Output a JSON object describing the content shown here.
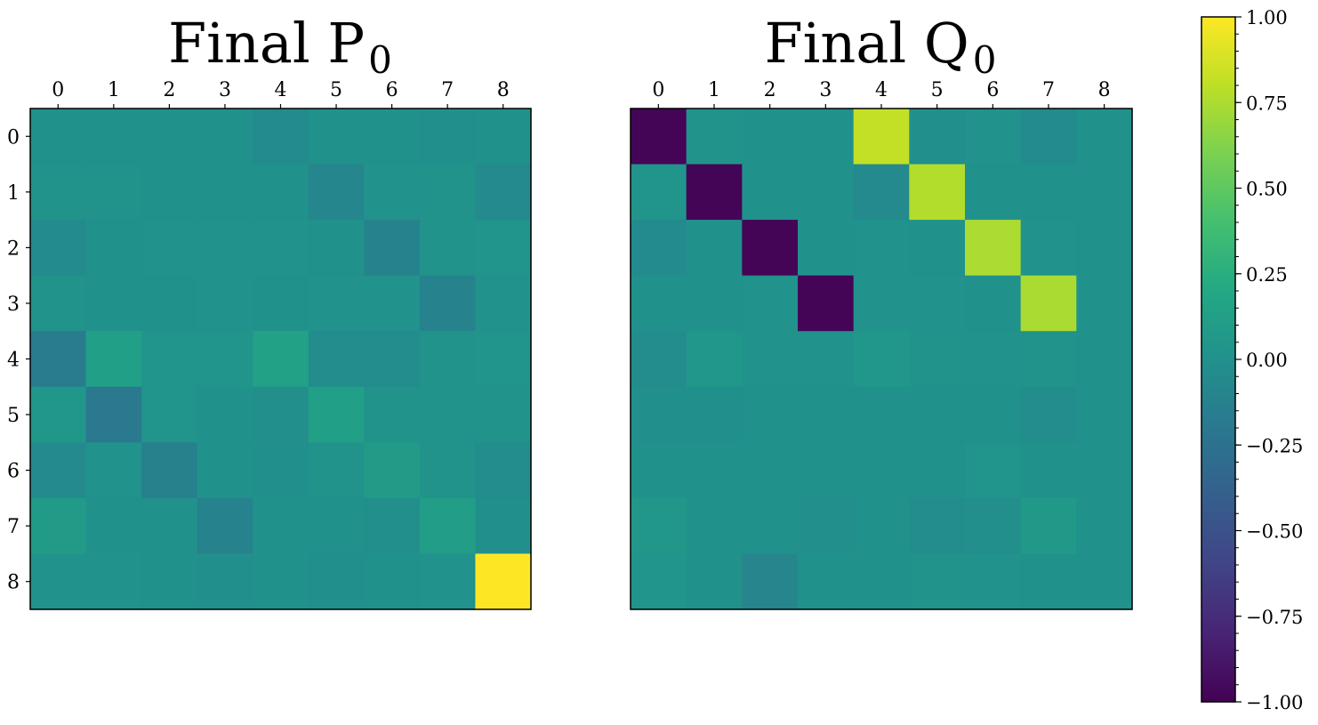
{
  "chart_data": [
    {
      "type": "heatmap",
      "title": "Final P",
      "title_subscript": "0",
      "x_tick_labels": [
        "0",
        "1",
        "2",
        "3",
        "4",
        "5",
        "6",
        "7",
        "8"
      ],
      "y_tick_labels": [
        "0",
        "1",
        "2",
        "3",
        "4",
        "5",
        "6",
        "7",
        "8"
      ],
      "x_ticks_position": "top",
      "colormap": "viridis",
      "vmin": -1.0,
      "vmax": 1.0,
      "values": [
        [
          0.0,
          0.0,
          0.0,
          0.0,
          -0.05,
          0.0,
          0.0,
          -0.01,
          0.0
        ],
        [
          0.02,
          0.02,
          0.0,
          0.0,
          0.0,
          -0.09,
          0.01,
          0.02,
          -0.06
        ],
        [
          -0.05,
          0.0,
          0.01,
          0.01,
          0.01,
          0.0,
          -0.11,
          0.02,
          0.03
        ],
        [
          0.02,
          0.0,
          0.0,
          0.01,
          0.0,
          0.01,
          0.01,
          -0.11,
          0.01
        ],
        [
          -0.17,
          0.13,
          0.03,
          0.03,
          0.14,
          -0.04,
          -0.03,
          0.02,
          0.03
        ],
        [
          0.05,
          -0.19,
          0.03,
          0.0,
          -0.02,
          0.13,
          0.02,
          0.02,
          0.02
        ],
        [
          -0.06,
          0.01,
          -0.13,
          0.0,
          -0.01,
          0.02,
          0.09,
          0.02,
          -0.04
        ],
        [
          0.09,
          0.0,
          0.0,
          -0.12,
          0.0,
          0.0,
          -0.02,
          0.11,
          -0.01
        ],
        [
          0.01,
          0.01,
          0.0,
          -0.01,
          0.0,
          -0.01,
          0.0,
          0.01,
          1.0
        ]
      ]
    },
    {
      "type": "heatmap",
      "title": "Final Q",
      "title_subscript": "0",
      "x_tick_labels": [
        "0",
        "1",
        "2",
        "3",
        "4",
        "5",
        "6",
        "7",
        "8"
      ],
      "y_tick_labels": [],
      "x_ticks_position": "top",
      "colormap": "viridis",
      "vmin": -1.0,
      "vmax": 1.0,
      "values": [
        [
          -0.98,
          0.02,
          0.0,
          0.0,
          0.82,
          -0.01,
          0.01,
          -0.05,
          0.0
        ],
        [
          0.03,
          -0.98,
          0.0,
          0.0,
          -0.06,
          0.77,
          0.0,
          0.0,
          0.0
        ],
        [
          -0.05,
          0.0,
          -0.98,
          0.0,
          0.01,
          0.0,
          0.75,
          0.01,
          0.0
        ],
        [
          0.0,
          0.0,
          0.01,
          -0.98,
          0.01,
          0.01,
          0.0,
          0.74,
          0.0
        ],
        [
          -0.04,
          0.05,
          0.01,
          0.01,
          0.05,
          0.02,
          0.01,
          0.02,
          0.0
        ],
        [
          -0.01,
          -0.01,
          0.0,
          0.0,
          0.0,
          0.0,
          0.0,
          -0.03,
          0.0
        ],
        [
          0.0,
          0.0,
          0.0,
          0.0,
          0.0,
          0.0,
          0.03,
          0.0,
          0.0
        ],
        [
          0.05,
          0.0,
          0.0,
          -0.02,
          0.0,
          -0.03,
          -0.02,
          0.07,
          0.0
        ],
        [
          0.03,
          0.0,
          -0.1,
          0.0,
          0.0,
          0.02,
          0.01,
          0.0,
          0.0
        ]
      ]
    }
  ],
  "colorbar": {
    "min": -1.0,
    "max": 1.0,
    "tick_values": [
      1.0,
      0.75,
      0.5,
      0.25,
      0.0,
      -0.25,
      -0.5,
      -0.75,
      -1.0
    ],
    "tick_labels": [
      "1.00",
      "0.75",
      "0.50",
      "0.25",
      "0.00",
      "−0.25",
      "−0.50",
      "−0.75",
      "−1.00"
    ],
    "minor_ticks_per_major": 5
  }
}
